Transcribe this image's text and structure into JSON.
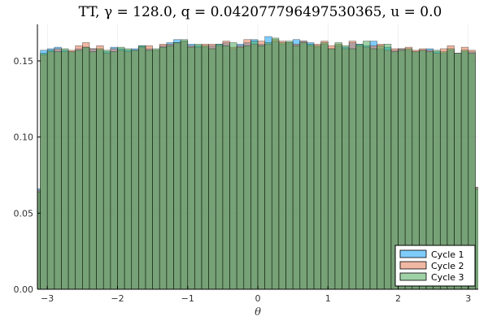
{
  "chart_data": {
    "type": "bar",
    "title": "TT, γ = 128.0, q = 0.042077796497530365, u = 0.0",
    "xlabel": "θ",
    "ylabel": "",
    "xlim": [
      -3.14159,
      3.14159
    ],
    "ylim": [
      0,
      0.174
    ],
    "grid": true,
    "legend_position": "bottom-right",
    "bin_edges_range": [
      -3.2,
      3.2
    ],
    "bin_width": 0.1,
    "x_ticks": [
      -3,
      -2,
      -1,
      0,
      1,
      2,
      3
    ],
    "x_tick_labels": [
      "−3",
      "−2",
      "−1",
      "0",
      "1",
      "2",
      "3"
    ],
    "y_ticks": [
      0.0,
      0.05,
      0.1,
      0.15
    ],
    "y_tick_labels": [
      "0.00",
      "0.05",
      "0.10",
      "0.15"
    ],
    "series": [
      {
        "name": "Cycle 1",
        "color": "#009af9",
        "values": [
          0.066,
          0.157,
          0.158,
          0.159,
          0.157,
          0.156,
          0.158,
          0.159,
          0.158,
          0.157,
          0.156,
          0.159,
          0.158,
          0.157,
          0.158,
          0.16,
          0.158,
          0.157,
          0.16,
          0.162,
          0.164,
          0.163,
          0.161,
          0.16,
          0.159,
          0.16,
          0.161,
          0.162,
          0.158,
          0.161,
          0.162,
          0.164,
          0.161,
          0.166,
          0.163,
          0.161,
          0.162,
          0.164,
          0.163,
          0.162,
          0.159,
          0.161,
          0.158,
          0.16,
          0.159,
          0.162,
          0.161,
          0.16,
          0.163,
          0.158,
          0.159,
          0.157,
          0.158,
          0.157,
          0.156,
          0.157,
          0.158,
          0.156,
          0.155,
          0.157,
          0.155,
          0.156,
          0.156,
          0.067
        ]
      },
      {
        "name": "Cycle 2",
        "color": "#e26f46",
        "values": [
          0.065,
          0.154,
          0.156,
          0.158,
          0.156,
          0.157,
          0.16,
          0.162,
          0.158,
          0.16,
          0.155,
          0.158,
          0.157,
          0.156,
          0.157,
          0.159,
          0.16,
          0.157,
          0.161,
          0.161,
          0.162,
          0.163,
          0.16,
          0.159,
          0.161,
          0.161,
          0.16,
          0.163,
          0.159,
          0.16,
          0.164,
          0.161,
          0.163,
          0.161,
          0.164,
          0.163,
          0.162,
          0.161,
          0.163,
          0.16,
          0.161,
          0.163,
          0.16,
          0.161,
          0.158,
          0.163,
          0.16,
          0.159,
          0.16,
          0.161,
          0.157,
          0.158,
          0.158,
          0.159,
          0.157,
          0.158,
          0.157,
          0.155,
          0.158,
          0.16,
          0.155,
          0.159,
          0.157,
          0.067
        ]
      },
      {
        "name": "Cycle 3",
        "color": "#3da44d",
        "values": [
          0.064,
          0.155,
          0.157,
          0.156,
          0.158,
          0.156,
          0.157,
          0.159,
          0.156,
          0.158,
          0.157,
          0.156,
          0.159,
          0.158,
          0.157,
          0.16,
          0.157,
          0.158,
          0.159,
          0.16,
          0.162,
          0.164,
          0.159,
          0.161,
          0.16,
          0.158,
          0.161,
          0.16,
          0.162,
          0.159,
          0.16,
          0.163,
          0.16,
          0.162,
          0.165,
          0.162,
          0.163,
          0.16,
          0.162,
          0.161,
          0.16,
          0.162,
          0.158,
          0.162,
          0.16,
          0.158,
          0.161,
          0.163,
          0.158,
          0.16,
          0.161,
          0.156,
          0.157,
          0.158,
          0.156,
          0.157,
          0.156,
          0.157,
          0.156,
          0.158,
          0.155,
          0.157,
          0.155,
          0.066
        ]
      }
    ]
  }
}
